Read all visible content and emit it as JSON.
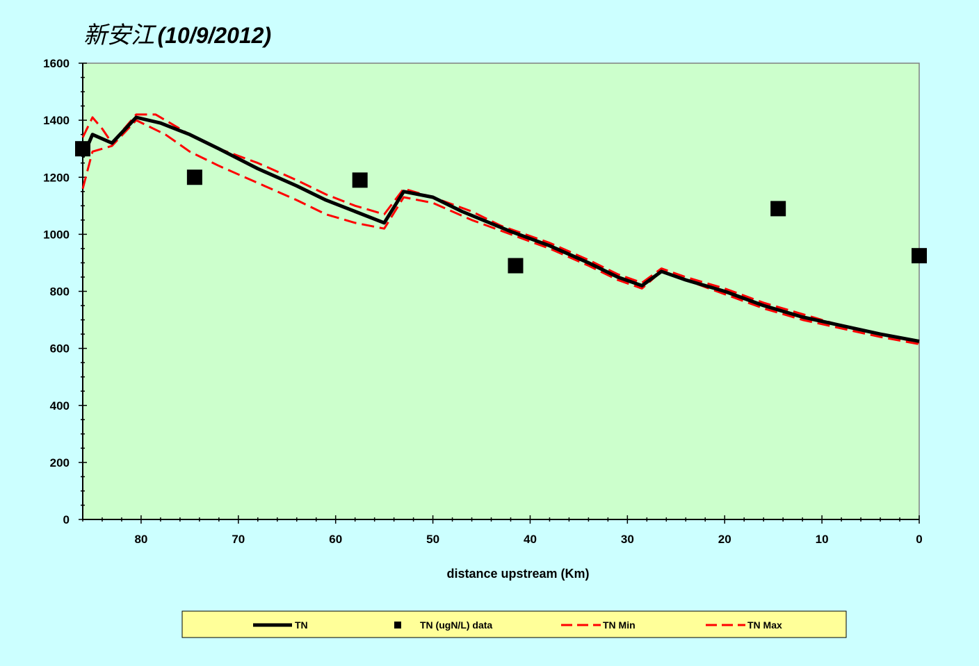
{
  "chart_data": {
    "type": "line",
    "title_chinese": "新安江",
    "title_date": "(10/9/2012)",
    "xlabel": "distance upstream (Km)",
    "ylabel": "",
    "xlim": [
      86,
      0
    ],
    "ylim": [
      0,
      1600
    ],
    "x_ticks": [
      80,
      70,
      60,
      50,
      40,
      30,
      20,
      10,
      0
    ],
    "y_ticks": [
      0,
      200,
      400,
      600,
      800,
      1000,
      1200,
      1400,
      1600
    ],
    "grid": false,
    "legend_position": "bottom",
    "colors": {
      "background": "#ccffff",
      "plot_area": "#ccffcc",
      "legend_box": "#ffff99",
      "tn_line": "#000000",
      "tn_min_max": "#ff0000",
      "data_marker": "#000000"
    },
    "series": [
      {
        "name": "TN",
        "style": "solid-thick",
        "x": [
          86,
          85,
          83,
          80.5,
          78,
          75,
          72,
          68,
          64,
          61,
          58,
          55,
          53,
          50,
          47,
          42,
          38,
          34,
          31,
          28.5,
          26.5,
          24,
          20,
          16,
          12,
          8,
          4,
          0
        ],
        "y": [
          1270,
          1350,
          1320,
          1410,
          1390,
          1350,
          1300,
          1230,
          1170,
          1120,
          1080,
          1040,
          1150,
          1130,
          1080,
          1010,
          960,
          900,
          850,
          820,
          870,
          840,
          800,
          750,
          710,
          680,
          650,
          625
        ]
      },
      {
        "name": "TN (ugN/L) data",
        "style": "square-marker",
        "x": [
          86,
          74.5,
          57.5,
          41.5,
          14.5,
          0
        ],
        "y": [
          1300,
          1200,
          1190,
          890,
          1090,
          925
        ]
      },
      {
        "name": "TN Min",
        "style": "dashed",
        "x": [
          86,
          85,
          83,
          80.5,
          77.5,
          75,
          72,
          68,
          64,
          61,
          58,
          55,
          53,
          50,
          46,
          42,
          38,
          34,
          31,
          28.5,
          26.5,
          24,
          20,
          16,
          12,
          8,
          4,
          0
        ],
        "y": [
          1160,
          1290,
          1310,
          1400,
          1350,
          1290,
          1240,
          1180,
          1120,
          1070,
          1040,
          1020,
          1130,
          1110,
          1050,
          1000,
          950,
          890,
          840,
          810,
          870,
          840,
          790,
          740,
          700,
          670,
          640,
          615
        ]
      },
      {
        "name": "TN Max",
        "style": "dashed",
        "x": [
          86,
          85,
          84,
          83,
          80.5,
          78.5,
          75,
          72,
          68,
          64,
          61,
          58,
          55,
          53,
          50,
          46,
          43,
          38,
          34,
          31,
          28.5,
          26.5,
          24,
          20,
          16,
          12,
          8,
          4,
          0
        ],
        "y": [
          1340,
          1410,
          1370,
          1320,
          1420,
          1420,
          1350,
          1300,
          1250,
          1190,
          1140,
          1100,
          1070,
          1160,
          1130,
          1080,
          1030,
          970,
          910,
          860,
          830,
          880,
          850,
          810,
          760,
          720,
          680,
          650,
          620
        ]
      }
    ]
  }
}
